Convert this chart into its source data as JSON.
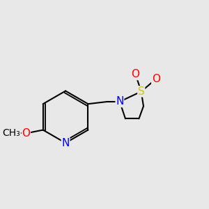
{
  "background_color": "#e8e8e8",
  "bond_color": "#000000",
  "atom_colors": {
    "N": "#0000ff",
    "O": "#ff0000",
    "S": "#cccc00",
    "C": "#000000"
  },
  "font_size": 11,
  "line_width": 1.5
}
